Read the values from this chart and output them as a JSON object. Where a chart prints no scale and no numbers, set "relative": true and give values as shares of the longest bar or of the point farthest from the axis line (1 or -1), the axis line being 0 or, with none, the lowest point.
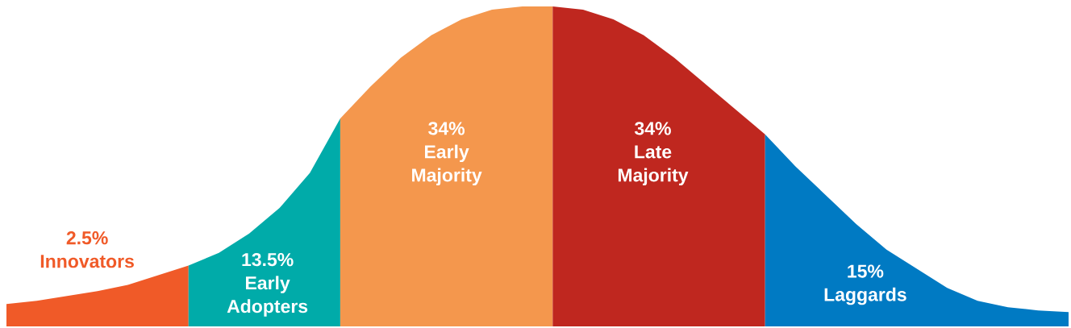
{
  "chart_data": {
    "type": "area",
    "relative": true,
    "categories": [
      null,
      null,
      null,
      null,
      null,
      null,
      null,
      null,
      null,
      null,
      null,
      null,
      null,
      null,
      null,
      null,
      null,
      null,
      null,
      null,
      null,
      null,
      null,
      null,
      null,
      null,
      null,
      null,
      null,
      null,
      null,
      null,
      null,
      null,
      null,
      null
    ],
    "series": [
      {
        "name": "Innovators",
        "color": "#f05a28",
        "values": [
          0.07,
          0.08,
          0.095,
          0.11,
          0.13,
          0.16,
          0.19,
          null,
          null,
          null,
          null,
          null,
          null,
          null,
          null,
          null,
          null,
          null,
          null,
          null,
          null,
          null,
          null,
          null,
          null,
          null,
          null,
          null,
          null,
          null,
          null,
          null,
          null,
          null,
          null,
          null
        ]
      },
      {
        "name": "Early Adopters",
        "color": "#00aba9",
        "values": [
          null,
          null,
          null,
          null,
          null,
          null,
          0.19,
          0.23,
          0.29,
          0.37,
          0.48,
          0.65,
          null,
          null,
          null,
          null,
          null,
          null,
          null,
          null,
          null,
          null,
          null,
          null,
          null,
          null,
          null,
          null,
          null,
          null,
          null,
          null,
          null,
          null,
          null,
          null
        ]
      },
      {
        "name": "Early Majority",
        "color": "#f4974d",
        "values": [
          null,
          null,
          null,
          null,
          null,
          null,
          null,
          null,
          null,
          null,
          null,
          0.65,
          0.75,
          0.84,
          0.91,
          0.96,
          0.99,
          1.0,
          1.0,
          null,
          null,
          null,
          null,
          null,
          null,
          null,
          null,
          null,
          null,
          null,
          null,
          null,
          null,
          null,
          null,
          null
        ]
      },
      {
        "name": "Late Majority",
        "color": "#bf271f",
        "values": [
          null,
          null,
          null,
          null,
          null,
          null,
          null,
          null,
          null,
          null,
          null,
          null,
          null,
          null,
          null,
          null,
          null,
          null,
          1.0,
          0.99,
          0.96,
          0.91,
          0.84,
          0.76,
          0.68,
          0.6,
          null,
          null,
          null,
          null,
          null,
          null,
          null,
          null,
          null,
          null
        ]
      },
      {
        "name": "Laggards",
        "color": "#007ac3",
        "values": [
          null,
          null,
          null,
          null,
          null,
          null,
          null,
          null,
          null,
          null,
          null,
          null,
          null,
          null,
          null,
          null,
          null,
          null,
          null,
          null,
          null,
          null,
          null,
          null,
          null,
          0.6,
          0.5,
          0.41,
          0.32,
          0.24,
          0.18,
          0.12,
          0.08,
          0.06,
          0.05,
          0.045
        ]
      }
    ],
    "annotations": [
      "2.5%",
      "13.5%",
      "34%",
      "34%",
      "15%"
    ]
  }
}
